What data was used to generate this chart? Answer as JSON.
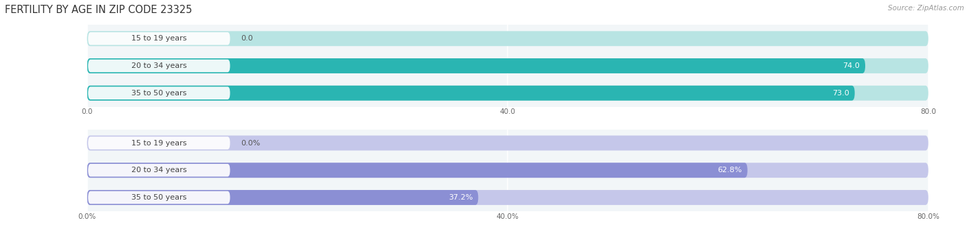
{
  "title": "FERTILITY BY AGE IN ZIP CODE 23325",
  "source": "Source: ZipAtlas.com",
  "top_chart": {
    "categories": [
      "15 to 19 years",
      "20 to 34 years",
      "35 to 50 years"
    ],
    "values": [
      0.0,
      74.0,
      73.0
    ],
    "xlim": [
      0,
      80
    ],
    "xticks": [
      0.0,
      40.0,
      80.0
    ],
    "xtick_labels": [
      "0.0",
      "40.0",
      "80.0"
    ],
    "bar_color": "#2ab5b2",
    "bar_light_color": "#b8e4e3",
    "bg_color": "#f2f6f8"
  },
  "bottom_chart": {
    "categories": [
      "15 to 19 years",
      "20 to 34 years",
      "35 to 50 years"
    ],
    "values": [
      0.0,
      62.8,
      37.2
    ],
    "xlim": [
      0,
      80
    ],
    "xticks": [
      0.0,
      40.0,
      80.0
    ],
    "xtick_labels": [
      "0.0%",
      "40.0%",
      "80.0%"
    ],
    "bar_color": "#8b8fd4",
    "bar_light_color": "#c5c7ea",
    "bg_color": "#f2f6f8"
  },
  "figure_bg": "#ffffff",
  "title_fontsize": 10.5,
  "source_fontsize": 7.5,
  "value_fontsize": 8,
  "tick_fontsize": 7.5,
  "category_fontsize": 8,
  "label_text_color": "#444444",
  "badge_color": "#ffffff",
  "value_label_color_inside": "white",
  "value_label_color_outside": "#555555"
}
